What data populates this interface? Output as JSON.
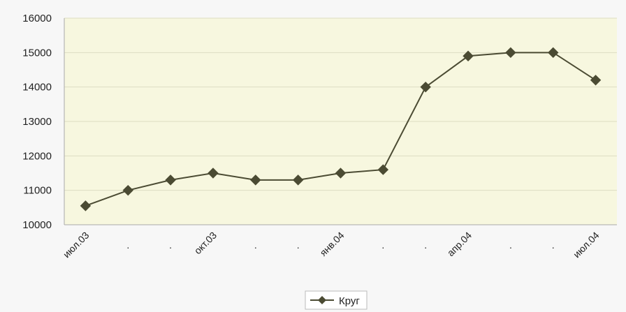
{
  "chart_data": {
    "type": "line",
    "title": "",
    "xlabel": "",
    "ylabel": "",
    "categories": [
      "июл.03",
      ".",
      ".",
      "окт.03",
      ".",
      ".",
      "янв.04",
      ".",
      ".",
      "апр.04",
      ".",
      ".",
      "июл.04"
    ],
    "x_tick_labels": [
      "июл.03",
      ".",
      ".",
      "окт.03",
      ".",
      ".",
      "янв.04",
      ".",
      ".",
      "апр.04",
      ".",
      ".",
      "июл.04"
    ],
    "y_ticks": [
      "10000",
      "11000",
      "12000",
      "13000",
      "14000",
      "15000",
      "16000"
    ],
    "ylim": [
      10000,
      16000
    ],
    "grid": true,
    "legend_position": "bottom",
    "series": [
      {
        "name": "Круг",
        "color": "#4b4b33",
        "marker": "diamond",
        "values": [
          10550,
          11000,
          11300,
          11500,
          11300,
          11300,
          11500,
          11600,
          14000,
          14900,
          15000,
          15000,
          14200
        ]
      }
    ],
    "colors": {
      "plot_bg": "#f7f7df",
      "outer_bg": "#f7f7f7",
      "grid": "#ddddc2",
      "axis": "#aaaaaa"
    }
  }
}
